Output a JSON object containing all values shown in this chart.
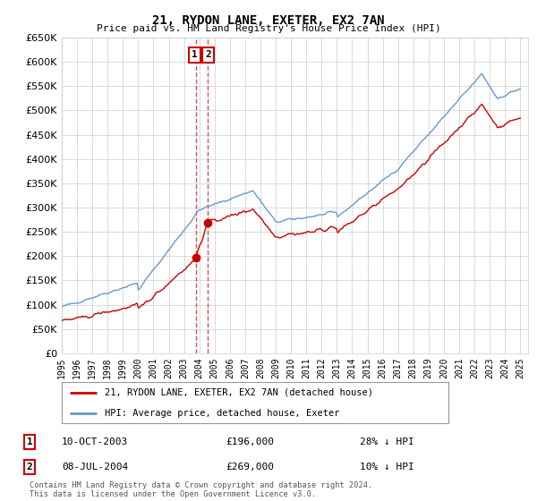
{
  "title": "21, RYDON LANE, EXETER, EX2 7AN",
  "subtitle": "Price paid vs. HM Land Registry's House Price Index (HPI)",
  "legend_line1": "21, RYDON LANE, EXETER, EX2 7AN (detached house)",
  "legend_line2": "HPI: Average price, detached house, Exeter",
  "purchase1_date": "10-OCT-2003",
  "purchase1_price": 196000,
  "purchase1_label": "28% ↓ HPI",
  "purchase2_date": "08-JUL-2004",
  "purchase2_price": 269000,
  "purchase2_label": "10% ↓ HPI",
  "footer": "Contains HM Land Registry data © Crown copyright and database right 2024.\nThis data is licensed under the Open Government Licence v3.0.",
  "hpi_color": "#6699cc",
  "price_color": "#cc0000",
  "dashed_color": "#cc4444",
  "grid_color": "#cccccc",
  "bg_color": "#ffffff",
  "ylim": [
    0,
    650000
  ],
  "yticks": [
    0,
    50000,
    100000,
    150000,
    200000,
    250000,
    300000,
    350000,
    400000,
    450000,
    500000,
    550000,
    600000,
    650000
  ],
  "xlim_start": 1995.0,
  "xlim_end": 2025.5,
  "purchase1_x": 2003.78,
  "purchase2_x": 2004.52
}
